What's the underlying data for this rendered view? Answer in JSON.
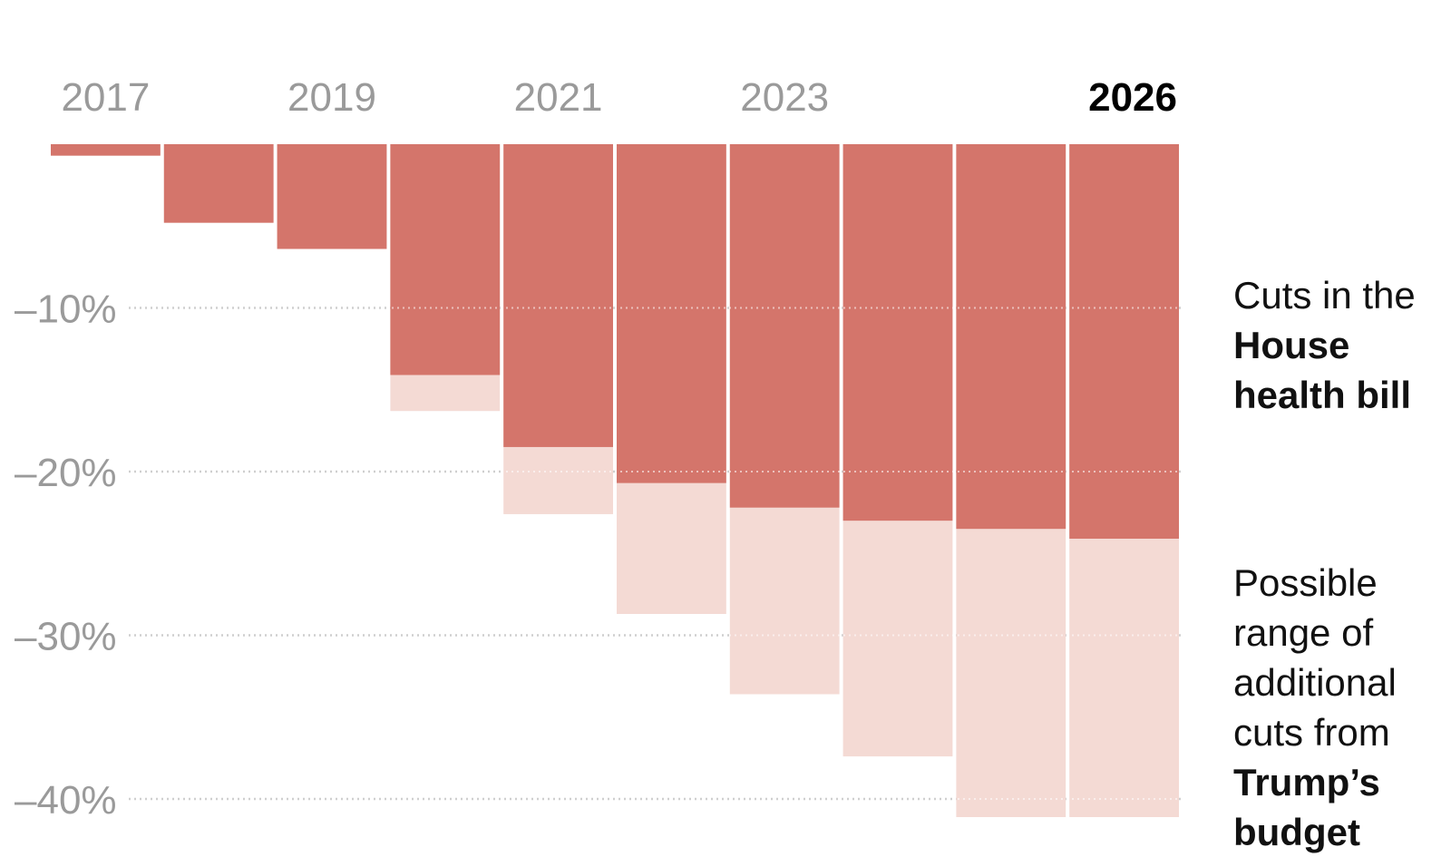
{
  "chart_data": {
    "type": "bar",
    "categories": [
      "2017",
      "2018",
      "2019",
      "2020",
      "2021",
      "2022",
      "2023",
      "2024",
      "2025",
      "2026"
    ],
    "x_tick_labels": [
      "2017",
      "2019",
      "2021",
      "2023",
      "2026"
    ],
    "highlight_tick": "2026",
    "series": [
      {
        "values": [
          -0.7,
          -4.8,
          -6.4,
          -14.1,
          -18.5,
          -20.7,
          -22.2,
          -23.0,
          -23.5,
          -24.1
        ]
      },
      {
        "values": [
          -0.7,
          -4.8,
          -6.4,
          -16.3,
          -22.6,
          -28.7,
          -33.6,
          -37.4,
          -42.0,
          -42.0
        ]
      }
    ],
    "y_ticks": [
      -10,
      -20,
      -30,
      -40
    ],
    "y_tick_labels": [
      "–10%",
      "–20%",
      "–30%",
      "–40%"
    ],
    "ylim": [
      -41.6,
      0
    ],
    "grid": "horizontal dotted",
    "colors": {
      "house_cut": "#d4756b",
      "additional_range": "#f4dad4",
      "grid": "#cfcfcf",
      "tick_text": "#9a9a9a"
    },
    "annotations": {
      "house": {
        "line1": "Cuts in the",
        "line2": "House",
        "line3": "health bill"
      },
      "additional": {
        "line1": "Possible",
        "line2": "range of",
        "line3": "additional",
        "line4": "cuts from",
        "line5": "Trump’s",
        "line6": "budget"
      }
    }
  }
}
